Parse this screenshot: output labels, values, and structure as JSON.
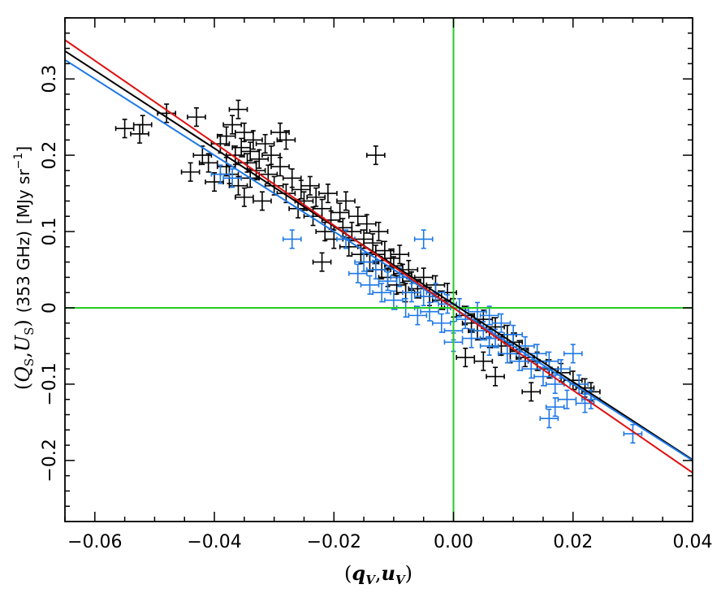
{
  "chart_data": {
    "type": "scatter",
    "xlabel_parts": {
      "open": "(",
      "q": "q",
      "q_sub": "V",
      "comma": ",",
      "u": "u",
      "u_sub": "V",
      "close": ")"
    },
    "ylabel_parts": {
      "open": "(",
      "Q": "Q",
      "Q_sub": "S",
      "comma": ",",
      "U": "U",
      "U_sub": "S",
      "close": ")",
      "freq": "(353 GHz)",
      "unit_main": "[MJy sr",
      "unit_sup": "−1",
      "unit_close": "]"
    },
    "xlim": [
      -0.065,
      0.04
    ],
    "ylim": [
      -0.28,
      0.38
    ],
    "x_ticks": [
      -0.06,
      -0.04,
      -0.02,
      0.0,
      0.02,
      0.04
    ],
    "x_tick_labels": [
      "−0.06",
      "−0.04",
      "−0.02",
      "0.00",
      "0.02",
      "0.04"
    ],
    "y_ticks": [
      -0.2,
      -0.1,
      0,
      0.1,
      0.2,
      0.3
    ],
    "y_tick_labels": [
      "−0.2",
      "−0.1",
      "0",
      "0.1",
      "0.2",
      "0.3"
    ],
    "reference_lines": {
      "x": 0,
      "y": 0,
      "color": "#22cc22"
    },
    "fit_lines": [
      {
        "color": "#000000",
        "slope": -5.1,
        "intercept": 0.005
      },
      {
        "color": "#1e78e6",
        "slope": -5.0,
        "intercept": 0.0
      },
      {
        "color": "#e01010",
        "slope": -5.4,
        "intercept": 0.0
      }
    ],
    "series": [
      {
        "color": "#000000",
        "points": [
          [
            -0.055,
            0.235,
            0.0015,
            0.012
          ],
          [
            -0.052,
            0.24,
            0.0015,
            0.012
          ],
          [
            -0.0525,
            0.228,
            0.0015,
            0.012
          ],
          [
            -0.048,
            0.255,
            0.0015,
            0.012
          ],
          [
            -0.044,
            0.178,
            0.0015,
            0.012
          ],
          [
            -0.043,
            0.25,
            0.0015,
            0.012
          ],
          [
            -0.042,
            0.2,
            0.0015,
            0.012
          ],
          [
            -0.041,
            0.19,
            0.0015,
            0.012
          ],
          [
            -0.04,
            0.165,
            0.0015,
            0.012
          ],
          [
            -0.039,
            0.215,
            0.0015,
            0.012
          ],
          [
            -0.038,
            0.225,
            0.0015,
            0.012
          ],
          [
            -0.038,
            0.185,
            0.0015,
            0.012
          ],
          [
            -0.0375,
            0.175,
            0.0015,
            0.012
          ],
          [
            -0.037,
            0.24,
            0.0015,
            0.012
          ],
          [
            -0.0365,
            0.2,
            0.0015,
            0.012
          ],
          [
            -0.036,
            0.26,
            0.0015,
            0.012
          ],
          [
            -0.036,
            0.16,
            0.0015,
            0.012
          ],
          [
            -0.0355,
            0.21,
            0.0015,
            0.012
          ],
          [
            -0.035,
            0.23,
            0.0015,
            0.012
          ],
          [
            -0.035,
            0.145,
            0.0015,
            0.012
          ],
          [
            -0.0345,
            0.19,
            0.0015,
            0.012
          ],
          [
            -0.034,
            0.205,
            0.0015,
            0.012
          ],
          [
            -0.034,
            0.17,
            0.0015,
            0.012
          ],
          [
            -0.0335,
            0.22,
            0.0015,
            0.012
          ],
          [
            -0.033,
            0.18,
            0.0015,
            0.012
          ],
          [
            -0.0325,
            0.195,
            0.0015,
            0.012
          ],
          [
            -0.032,
            0.14,
            0.0015,
            0.012
          ],
          [
            -0.0315,
            0.215,
            0.0015,
            0.012
          ],
          [
            -0.031,
            0.175,
            0.0015,
            0.012
          ],
          [
            -0.0305,
            0.2,
            0.0015,
            0.012
          ],
          [
            -0.03,
            0.16,
            0.0015,
            0.012
          ],
          [
            -0.029,
            0.23,
            0.0015,
            0.012
          ],
          [
            -0.029,
            0.185,
            0.0015,
            0.012
          ],
          [
            -0.028,
            0.22,
            0.0015,
            0.012
          ],
          [
            -0.028,
            0.15,
            0.0015,
            0.012
          ],
          [
            -0.027,
            0.17,
            0.0015,
            0.012
          ],
          [
            -0.026,
            0.13,
            0.0015,
            0.012
          ],
          [
            -0.0255,
            0.155,
            0.0015,
            0.012
          ],
          [
            -0.025,
            0.14,
            0.0015,
            0.012
          ],
          [
            -0.024,
            0.16,
            0.0015,
            0.012
          ],
          [
            -0.0235,
            0.12,
            0.0015,
            0.012
          ],
          [
            -0.023,
            0.145,
            0.0015,
            0.012
          ],
          [
            -0.022,
            0.13,
            0.0015,
            0.012
          ],
          [
            -0.022,
            0.06,
            0.0015,
            0.012
          ],
          [
            -0.0215,
            0.1,
            0.0015,
            0.012
          ],
          [
            -0.021,
            0.15,
            0.0015,
            0.012
          ],
          [
            -0.0205,
            0.115,
            0.0015,
            0.012
          ],
          [
            -0.02,
            0.09,
            0.0015,
            0.012
          ],
          [
            -0.019,
            0.125,
            0.0015,
            0.012
          ],
          [
            -0.0185,
            0.105,
            0.0015,
            0.012
          ],
          [
            -0.018,
            0.14,
            0.0015,
            0.012
          ],
          [
            -0.0175,
            0.08,
            0.0015,
            0.012
          ],
          [
            -0.017,
            0.1,
            0.0015,
            0.012
          ],
          [
            -0.016,
            0.12,
            0.0015,
            0.012
          ],
          [
            -0.0155,
            0.07,
            0.0015,
            0.012
          ],
          [
            -0.015,
            0.09,
            0.0015,
            0.012
          ],
          [
            -0.0145,
            0.11,
            0.0015,
            0.012
          ],
          [
            -0.014,
            0.06,
            0.0015,
            0.012
          ],
          [
            -0.0135,
            0.085,
            0.0015,
            0.012
          ],
          [
            -0.013,
            0.2,
            0.0015,
            0.012
          ],
          [
            -0.013,
            0.07,
            0.0015,
            0.012
          ],
          [
            -0.0125,
            0.1,
            0.0015,
            0.012
          ],
          [
            -0.012,
            0.05,
            0.0015,
            0.012
          ],
          [
            -0.0115,
            0.075,
            0.0015,
            0.012
          ],
          [
            -0.011,
            0.04,
            0.0015,
            0.012
          ],
          [
            -0.0105,
            0.065,
            0.0015,
            0.012
          ],
          [
            -0.01,
            0.055,
            0.0015,
            0.012
          ],
          [
            -0.0095,
            0.03,
            0.0015,
            0.012
          ],
          [
            -0.009,
            0.07,
            0.0015,
            0.012
          ],
          [
            -0.0085,
            0.045,
            0.0015,
            0.012
          ],
          [
            -0.008,
            0.02,
            0.0015,
            0.012
          ],
          [
            -0.0075,
            0.05,
            0.0015,
            0.012
          ],
          [
            -0.007,
            0.035,
            0.0015,
            0.012
          ],
          [
            -0.006,
            0.025,
            0.0015,
            0.012
          ],
          [
            -0.005,
            0.04,
            0.0015,
            0.012
          ],
          [
            -0.004,
            0.015,
            0.0015,
            0.012
          ],
          [
            -0.003,
            0.03,
            0.0015,
            0.012
          ],
          [
            -0.002,
            0.01,
            0.0015,
            0.012
          ],
          [
            -0.001,
            0.02,
            0.0015,
            0.012
          ],
          [
            0.0,
            0.0,
            0.0015,
            0.012
          ],
          [
            0.002,
            -0.01,
            0.0015,
            0.012
          ],
          [
            0.002,
            -0.065,
            0.0015,
            0.012
          ],
          [
            0.003,
            -0.02,
            0.0015,
            0.012
          ],
          [
            0.004,
            -0.03,
            0.0015,
            0.012
          ],
          [
            0.005,
            -0.015,
            0.0015,
            0.012
          ],
          [
            0.006,
            -0.04,
            0.0015,
            0.012
          ],
          [
            0.007,
            -0.025,
            0.0015,
            0.012
          ],
          [
            0.008,
            -0.05,
            0.0015,
            0.012
          ],
          [
            0.009,
            -0.035,
            0.0015,
            0.012
          ],
          [
            0.0095,
            -0.06,
            0.0015,
            0.012
          ],
          [
            0.01,
            -0.045,
            0.0015,
            0.012
          ],
          [
            0.011,
            -0.055,
            0.0015,
            0.012
          ],
          [
            0.012,
            -0.065,
            0.0015,
            0.012
          ],
          [
            0.013,
            -0.11,
            0.0015,
            0.012
          ],
          [
            0.014,
            -0.07,
            0.0015,
            0.012
          ],
          [
            0.016,
            -0.08,
            0.0015,
            0.012
          ],
          [
            0.018,
            -0.085,
            0.0015,
            0.012
          ],
          [
            0.02,
            -0.095,
            0.0015,
            0.012
          ],
          [
            0.022,
            -0.105,
            0.0015,
            0.012
          ],
          [
            0.023,
            -0.11,
            0.0015,
            0.012
          ],
          [
            0.007,
            -0.09,
            0.0015,
            0.012
          ],
          [
            0.005,
            -0.07,
            0.0015,
            0.012
          ]
        ]
      },
      {
        "color": "#1e78e6",
        "points": [
          [
            -0.039,
            0.175,
            0.0015,
            0.012
          ],
          [
            -0.037,
            0.17,
            0.0015,
            0.012
          ],
          [
            -0.027,
            0.09,
            0.0015,
            0.012
          ],
          [
            -0.018,
            0.09,
            0.0015,
            0.012
          ],
          [
            -0.016,
            0.045,
            0.0015,
            0.012
          ],
          [
            -0.015,
            0.06,
            0.0015,
            0.012
          ],
          [
            -0.014,
            0.03,
            0.0015,
            0.012
          ],
          [
            -0.013,
            0.05,
            0.0015,
            0.012
          ],
          [
            -0.012,
            0.02,
            0.0015,
            0.012
          ],
          [
            -0.011,
            0.035,
            0.0015,
            0.012
          ],
          [
            -0.01,
            0.01,
            0.0015,
            0.012
          ],
          [
            -0.009,
            0.04,
            0.0015,
            0.012
          ],
          [
            -0.008,
            0.0,
            0.0015,
            0.012
          ],
          [
            -0.007,
            0.02,
            0.0015,
            0.012
          ],
          [
            -0.006,
            -0.01,
            0.0015,
            0.012
          ],
          [
            -0.005,
            0.09,
            0.0015,
            0.012
          ],
          [
            -0.005,
            0.015,
            0.0015,
            0.012
          ],
          [
            -0.004,
            -0.005,
            0.0015,
            0.012
          ],
          [
            -0.003,
            0.02,
            0.0015,
            0.012
          ],
          [
            -0.002,
            -0.02,
            0.0015,
            0.012
          ],
          [
            -0.001,
            0.005,
            0.0015,
            0.012
          ],
          [
            0.0,
            -0.03,
            0.0015,
            0.012
          ],
          [
            0.0,
            -0.045,
            0.0015,
            0.012
          ],
          [
            0.001,
            0.0,
            0.0015,
            0.012
          ],
          [
            0.002,
            -0.015,
            0.0015,
            0.012
          ],
          [
            0.003,
            -0.04,
            0.0015,
            0.012
          ],
          [
            0.004,
            -0.005,
            0.0015,
            0.012
          ],
          [
            0.005,
            -0.03,
            0.0015,
            0.012
          ],
          [
            0.006,
            -0.05,
            0.0015,
            0.012
          ],
          [
            0.006,
            -0.01,
            0.0015,
            0.012
          ],
          [
            0.007,
            -0.04,
            0.0015,
            0.012
          ],
          [
            0.008,
            -0.02,
            0.0015,
            0.012
          ],
          [
            0.009,
            -0.06,
            0.0015,
            0.012
          ],
          [
            0.01,
            -0.035,
            0.0015,
            0.012
          ],
          [
            0.011,
            -0.07,
            0.0015,
            0.012
          ],
          [
            0.012,
            -0.05,
            0.0015,
            0.012
          ],
          [
            0.013,
            -0.08,
            0.0015,
            0.012
          ],
          [
            0.014,
            -0.06,
            0.0015,
            0.012
          ],
          [
            0.015,
            -0.09,
            0.0015,
            0.012
          ],
          [
            0.016,
            -0.145,
            0.0015,
            0.012
          ],
          [
            0.016,
            -0.07,
            0.0015,
            0.012
          ],
          [
            0.017,
            -0.1,
            0.0015,
            0.012
          ],
          [
            0.017,
            -0.13,
            0.0015,
            0.012
          ],
          [
            0.018,
            -0.08,
            0.0015,
            0.012
          ],
          [
            0.019,
            -0.12,
            0.0015,
            0.012
          ],
          [
            0.02,
            -0.06,
            0.0015,
            0.012
          ],
          [
            0.021,
            -0.1,
            0.0015,
            0.012
          ],
          [
            0.022,
            -0.125,
            0.0015,
            0.012
          ],
          [
            0.023,
            -0.12,
            0.0015,
            0.012
          ],
          [
            0.03,
            -0.165,
            0.0015,
            0.012
          ]
        ]
      }
    ]
  }
}
